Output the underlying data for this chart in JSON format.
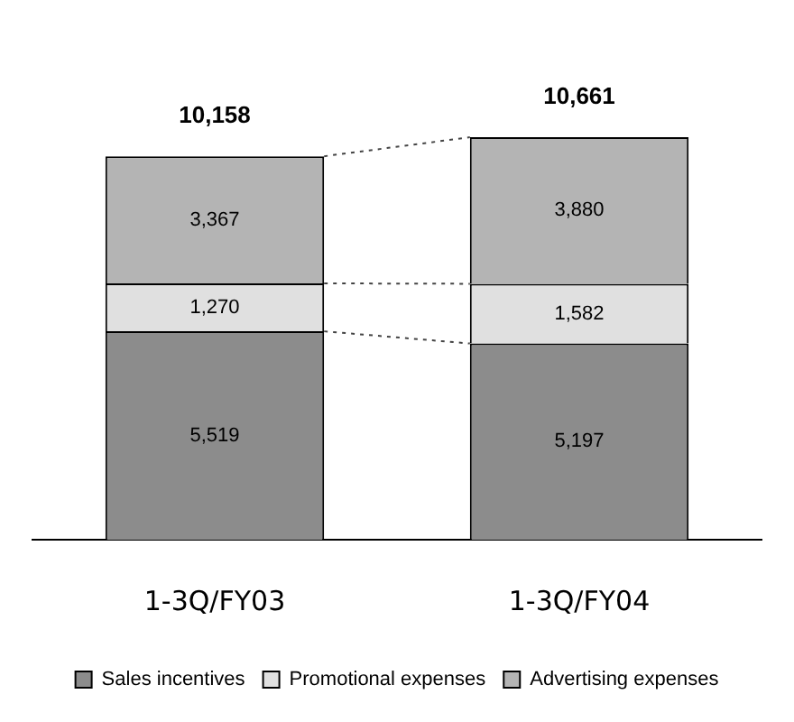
{
  "chart_data": {
    "type": "bar",
    "stacked": true,
    "legend": "bottom",
    "grid": false,
    "categories": [
      "1-3Q/FY03",
      "1-3Q/FY04"
    ],
    "series": [
      {
        "name": "Sales incentives",
        "color": "#8c8c8c",
        "values": [
          5519,
          5197
        ],
        "value_labels": [
          "5,519",
          "5,197"
        ]
      },
      {
        "name": "Promotional expenses",
        "color": "#e0e0e0",
        "values": [
          1270,
          1582
        ],
        "value_labels": [
          "1,270",
          "1,582"
        ]
      },
      {
        "name": "Advertising expenses",
        "color": "#b4b4b4",
        "values": [
          3367,
          3880
        ],
        "value_labels": [
          "3,367",
          "3,880"
        ]
      }
    ],
    "totals": [
      "10,158",
      "10,661"
    ]
  }
}
